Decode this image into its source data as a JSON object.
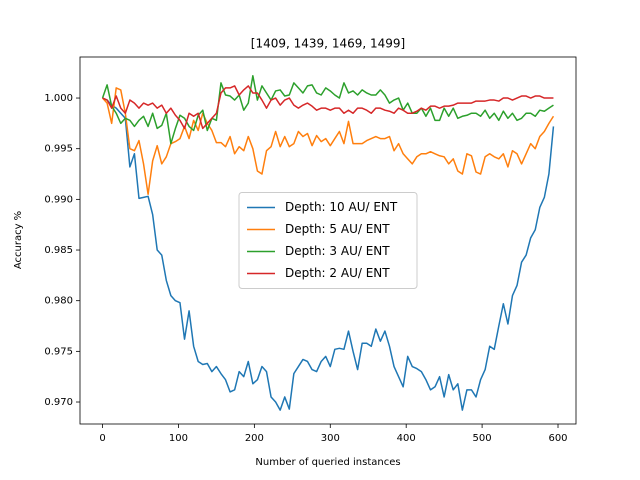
{
  "chart_data": {
    "type": "line",
    "title": "[1409, 1439, 1469, 1499]",
    "xlabel": "Number of queried instances",
    "ylabel": "Accuracy %",
    "x": [
      0,
      6,
      12,
      18,
      24,
      30,
      36,
      42,
      48,
      54,
      60,
      66,
      72,
      78,
      84,
      90,
      96,
      102,
      108,
      114,
      120,
      126,
      132,
      138,
      144,
      150,
      156,
      162,
      168,
      174,
      180,
      186,
      192,
      198,
      204,
      210,
      216,
      222,
      228,
      234,
      240,
      246,
      252,
      258,
      264,
      270,
      276,
      282,
      288,
      294,
      300,
      306,
      312,
      318,
      324,
      330,
      336,
      342,
      348,
      354,
      360,
      366,
      372,
      378,
      384,
      390,
      396,
      402,
      408,
      414,
      420,
      426,
      432,
      438,
      444,
      450,
      456,
      462,
      468,
      474,
      480,
      486,
      492,
      498,
      504,
      510,
      516,
      522,
      528,
      534,
      540,
      546,
      552,
      558,
      564,
      570,
      576,
      582,
      588,
      594
    ],
    "series": [
      {
        "name": "Depth: 10 AU/ ENT",
        "color": "#1f77b4",
        "values": [
          1.0,
          0.9998,
          0.9993,
          0.999,
          0.9985,
          0.998,
          0.9932,
          0.9945,
          0.9901,
          0.9902,
          0.9903,
          0.9885,
          0.985,
          0.9845,
          0.982,
          0.9805,
          0.98,
          0.9798,
          0.9762,
          0.979,
          0.9755,
          0.974,
          0.9737,
          0.9738,
          0.973,
          0.9735,
          0.9728,
          0.9722,
          0.971,
          0.9712,
          0.973,
          0.9725,
          0.974,
          0.9718,
          0.9722,
          0.9735,
          0.973,
          0.9705,
          0.97,
          0.9692,
          0.9705,
          0.9693,
          0.9728,
          0.9735,
          0.9742,
          0.974,
          0.9732,
          0.973,
          0.974,
          0.9745,
          0.9735,
          0.9752,
          0.9753,
          0.9752,
          0.977,
          0.975,
          0.9732,
          0.9758,
          0.9758,
          0.9755,
          0.9772,
          0.976,
          0.977,
          0.9755,
          0.9735,
          0.9725,
          0.9715,
          0.9745,
          0.9735,
          0.9733,
          0.973,
          0.9722,
          0.9712,
          0.9715,
          0.9725,
          0.9705,
          0.9727,
          0.9712,
          0.9718,
          0.9692,
          0.9712,
          0.9712,
          0.9705,
          0.9722,
          0.9732,
          0.9755,
          0.9752,
          0.9775,
          0.9797,
          0.9777,
          0.9805,
          0.9815,
          0.9838,
          0.9845,
          0.9862,
          0.987,
          0.9892,
          0.9902,
          0.9925,
          0.9972
        ]
      },
      {
        "name": "Depth: 5 AU/ ENT",
        "color": "#ff7f0e",
        "values": [
          1.0,
          0.9995,
          0.9975,
          1.001,
          1.0008,
          0.9985,
          0.995,
          0.9948,
          0.9958,
          0.9935,
          0.9905,
          0.9938,
          0.9953,
          0.9935,
          0.9942,
          0.9955,
          0.9957,
          0.996,
          0.9972,
          0.996,
          0.9978,
          0.9968,
          0.9985,
          0.9975,
          0.9968,
          0.9956,
          0.9956,
          0.9952,
          0.9962,
          0.9945,
          0.9952,
          0.9948,
          0.9962,
          0.995,
          0.9928,
          0.9925,
          0.9948,
          0.9952,
          0.9967,
          0.9952,
          0.9962,
          0.9952,
          0.9955,
          0.9967,
          0.9962,
          0.9965,
          0.9953,
          0.9963,
          0.9957,
          0.996,
          0.9953,
          0.996,
          0.9967,
          0.9955,
          0.9977,
          0.9955,
          0.9955,
          0.9955,
          0.9958,
          0.996,
          0.9962,
          0.996,
          0.996,
          0.9962,
          0.9948,
          0.9955,
          0.9945,
          0.994,
          0.9935,
          0.9942,
          0.9945,
          0.9945,
          0.9947,
          0.9945,
          0.9943,
          0.9942,
          0.9935,
          0.994,
          0.9928,
          0.9925,
          0.9945,
          0.9943,
          0.9927,
          0.9925,
          0.9942,
          0.9945,
          0.9942,
          0.994,
          0.9945,
          0.9932,
          0.9948,
          0.9945,
          0.9935,
          0.9945,
          0.9955,
          0.995,
          0.9962,
          0.9967,
          0.9975,
          0.9982
        ]
      },
      {
        "name": "Depth: 3 AU/ ENT",
        "color": "#2ca02c",
        "values": [
          1.0,
          1.0013,
          0.9992,
          0.9985,
          0.9975,
          0.998,
          0.9978,
          0.9972,
          0.9978,
          0.9982,
          0.9972,
          0.9985,
          0.997,
          0.9973,
          0.9985,
          0.9955,
          0.997,
          0.9983,
          0.998,
          0.9972,
          0.9968,
          0.9983,
          0.9988,
          0.9968,
          0.998,
          0.9978,
          1.0015,
          1.0003,
          1.0002,
          0.9998,
          1.0003,
          0.9988,
          0.9995,
          1.0022,
          0.9998,
          1.0012,
          1.0005,
          0.9998,
          1.0007,
          1.0008,
          1.0002,
          1.0003,
          1.0015,
          1.001,
          1.0005,
          1.0012,
          1.0013,
          1.0005,
          1.0003,
          1.001,
          1.0007,
          1.0003,
          1.0,
          1.0015,
          1.0005,
          1.0007,
          1.0003,
          1.0008,
          1.0005,
          1.0003,
          1.0003,
          1.0008,
          1.0003,
          0.9995,
          0.9998,
          1.0,
          0.9988,
          0.9995,
          0.9985,
          0.9985,
          0.999,
          0.9982,
          0.999,
          0.9978,
          0.9978,
          0.999,
          0.9982,
          0.999,
          0.998,
          0.9982,
          0.9983,
          0.9985,
          0.9985,
          0.9982,
          0.9988,
          0.998,
          0.9985,
          0.9978,
          0.9987,
          0.998,
          0.9985,
          0.9978,
          0.998,
          0.9985,
          0.9985,
          0.9982,
          0.9988,
          0.9987,
          0.999,
          0.9993
        ]
      },
      {
        "name": "Depth: 2 AU/ ENT",
        "color": "#d62728",
        "values": [
          1.0,
          0.9998,
          0.999,
          1.0002,
          0.999,
          0.9985,
          0.9998,
          0.9995,
          0.999,
          0.9995,
          0.9993,
          0.9995,
          0.999,
          0.9993,
          0.9985,
          0.999,
          0.9983,
          0.9978,
          0.997,
          0.9985,
          0.9982,
          0.9985,
          0.997,
          0.9975,
          0.998,
          0.9985,
          1.0005,
          1.001,
          1.001,
          1.0012,
          1.0003,
          1.0008,
          1.0012,
          1.0005,
          1.0005,
          0.9998,
          0.999,
          0.9998,
          1.0,
          0.9993,
          0.9998,
          1.0,
          0.9993,
          0.999,
          0.9993,
          0.9995,
          0.9992,
          0.9988,
          0.999,
          0.999,
          0.9988,
          0.999,
          0.999,
          0.9985,
          0.9988,
          0.9985,
          0.999,
          0.999,
          0.9988,
          0.9985,
          0.999,
          0.999,
          0.9988,
          0.9987,
          0.9985,
          0.999,
          0.9988,
          0.9985,
          0.9985,
          0.9987,
          0.999,
          0.9988,
          0.9992,
          0.9992,
          0.999,
          0.9992,
          0.9992,
          0.9993,
          0.9995,
          0.9995,
          0.9995,
          0.9995,
          0.9997,
          0.9997,
          0.9997,
          0.9998,
          0.9998,
          0.9997,
          1.0,
          1.0,
          0.9998,
          1.0,
          1.0002,
          1.0002,
          1.0,
          1.0002,
          1.0002,
          1.0,
          1.0,
          1.0
        ]
      }
    ],
    "xlim": [
      -29.7,
      623.7
    ],
    "xticks": [
      0,
      100,
      200,
      300,
      400,
      500,
      600
    ],
    "ylim": [
      0.96783,
      1.00405
    ],
    "yticks": [
      {
        "value": 0.97,
        "label": "0.970"
      },
      {
        "value": 0.975,
        "label": "0.975"
      },
      {
        "value": 0.98,
        "label": "0.980"
      },
      {
        "value": 0.985,
        "label": "0.985"
      },
      {
        "value": 0.99,
        "label": "0.990"
      },
      {
        "value": 0.995,
        "label": "0.995"
      },
      {
        "value": 1.0,
        "label": "1.000"
      }
    ],
    "legend": "center"
  }
}
